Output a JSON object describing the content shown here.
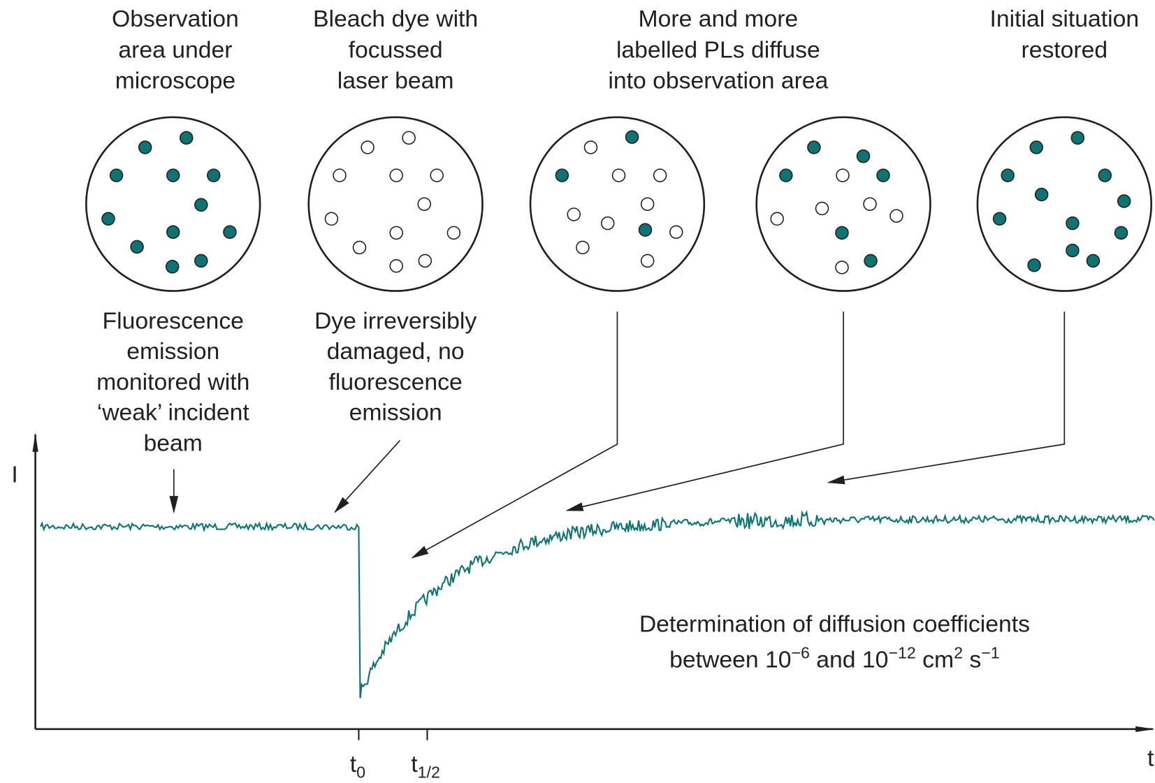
{
  "top_labels": [
    {
      "lines": [
        "Observation",
        "area under",
        "microscope"
      ]
    },
    {
      "lines": [
        "Bleach dye with",
        "focussed",
        "laser beam"
      ]
    },
    {
      "lines": [
        "More and more",
        "labelled PLs diffuse",
        "into observation area"
      ]
    },
    {
      "lines": [
        "Initial situation",
        "restored"
      ]
    }
  ],
  "bottom_labels": [
    {
      "lines": [
        "Fluorescence",
        "emission",
        "monitored with",
        "‘weak’ incident",
        "beam"
      ]
    },
    {
      "lines": [
        "Dye irreversibly",
        "damaged, no",
        "fluorescence",
        "emission"
      ]
    }
  ],
  "axes": {
    "y_label": "I",
    "x_label": "t",
    "ticks": [
      {
        "main": "t",
        "sub": "0"
      },
      {
        "main": "t",
        "sub": "1/2"
      }
    ]
  },
  "annotation": {
    "line1": "Determination of diffusion coefficients",
    "line2": [
      "between 10",
      "−6",
      " and 10",
      "−12",
      " cm",
      "2",
      " s",
      "−1"
    ]
  }
}
